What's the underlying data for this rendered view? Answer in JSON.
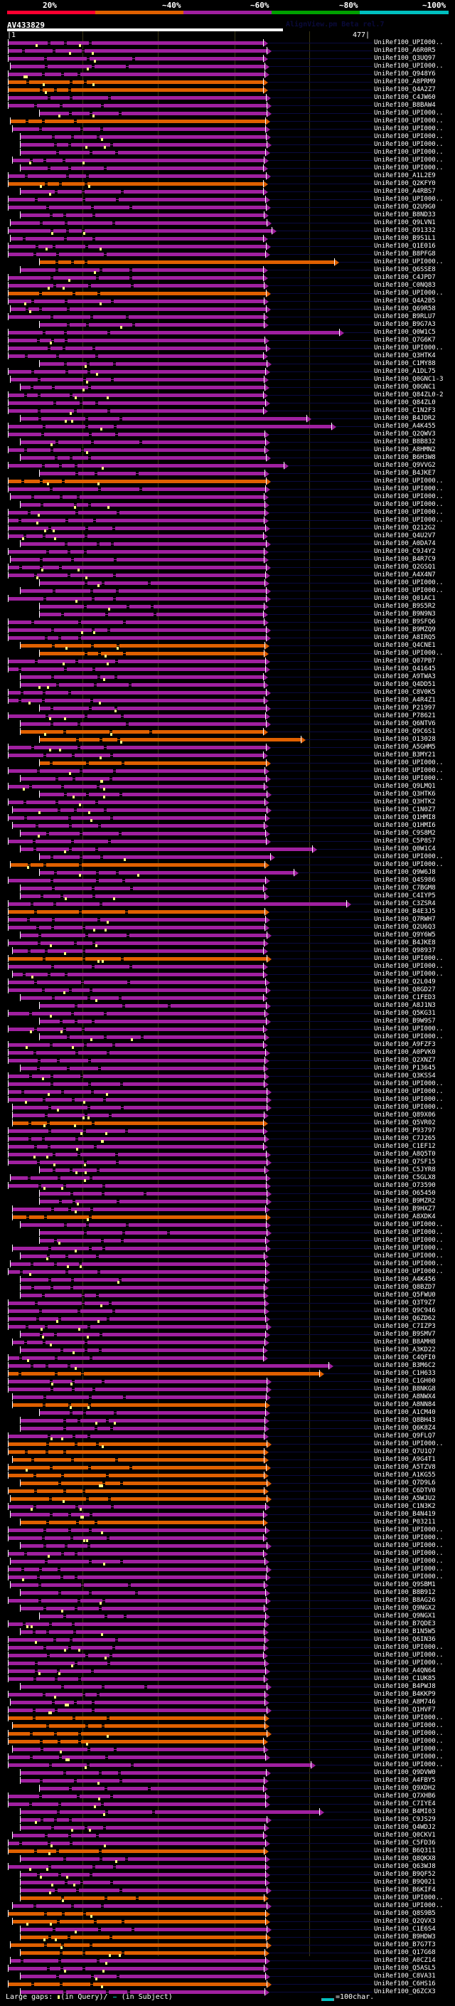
{
  "legend": {
    "labels": [
      "20%",
      "~40%",
      "~60%",
      "~80%",
      "~100%"
    ],
    "colors": [
      "#ff0030",
      "#e06000",
      "#a020a0",
      "#00a000",
      "#00c0c0"
    ]
  },
  "query": {
    "id": "AV433829",
    "start": "|1",
    "end": "477|",
    "length": 477
  },
  "version_label": "AlignView.pm Beta rel.7",
  "hit_colors": {
    "purple": "#a020a0",
    "orange": "#e06000"
  },
  "rows": [
    {
      "label": "UniRef100_UPI000..",
      "color": "purple"
    },
    {
      "label": "UniRef100_A6R0R5",
      "color": "purple"
    },
    {
      "label": "UniRef100_Q3UQ97",
      "color": "purple"
    },
    {
      "label": "UniRef100_UPI000..",
      "color": "purple"
    },
    {
      "label": "UniRef100_Q948Y6",
      "color": "purple"
    },
    {
      "label": "UniRef100_A8PRM9",
      "color": "orange"
    },
    {
      "label": "UniRef100_Q4A2Z7",
      "color": "orange"
    },
    {
      "label": "UniRef100_C4JW60",
      "color": "purple"
    },
    {
      "label": "UniRef100_B8BAW4",
      "color": "purple"
    },
    {
      "label": "UniRef100_UPI000..",
      "color": "purple"
    },
    {
      "label": "UniRef100_UPI000..",
      "color": "orange"
    },
    {
      "label": "UniRef100_UPI000..",
      "color": "purple"
    },
    {
      "label": "UniRef100_UPI000..",
      "color": "purple"
    },
    {
      "label": "UniRef100_UPI000..",
      "color": "purple"
    },
    {
      "label": "UniRef100_UPI000..",
      "color": "purple"
    },
    {
      "label": "UniRef100_UPI000..",
      "color": "purple"
    },
    {
      "label": "UniRef100_UPI000..",
      "color": "purple"
    },
    {
      "label": "UniRef100_A1L2E9",
      "color": "purple"
    },
    {
      "label": "UniRef100_Q2KFY0",
      "color": "orange"
    },
    {
      "label": "UniRef100_A4RBS7",
      "color": "purple"
    },
    {
      "label": "UniRef100_UPI000..",
      "color": "purple"
    },
    {
      "label": "UniRef100_Q2U9G0",
      "color": "purple"
    },
    {
      "label": "UniRef100_B8ND33",
      "color": "purple"
    },
    {
      "label": "UniRef100_Q9LVN1",
      "color": "purple"
    },
    {
      "label": "UniRef100_O91332",
      "color": "purple",
      "arrow": "far"
    },
    {
      "label": "UniRef100_B9S1L1",
      "color": "purple"
    },
    {
      "label": "UniRef100_Q1E016",
      "color": "purple"
    },
    {
      "label": "UniRef100_B8PFG8",
      "color": "purple"
    },
    {
      "label": "UniRef100_UPI000..",
      "color": "orange",
      "arrow": "far"
    },
    {
      "label": "UniRef100_Q6SSE8",
      "color": "purple"
    },
    {
      "label": "UniRef100_C4JPD7",
      "color": "purple"
    },
    {
      "label": "UniRef100_C0NQ83",
      "color": "purple"
    },
    {
      "label": "UniRef100_UPI000..",
      "color": "orange"
    },
    {
      "label": "UniRef100_Q4A2B5",
      "color": "purple"
    },
    {
      "label": "UniRef100_Q69R58",
      "color": "purple"
    },
    {
      "label": "UniRef100_B9RLU7",
      "color": "purple"
    },
    {
      "label": "UniRef100_B9G7A3",
      "color": "purple"
    },
    {
      "label": "UniRef100_Q0W1C5",
      "color": "purple",
      "arrow": "far"
    },
    {
      "label": "UniRef100_Q7G6K7",
      "color": "purple"
    },
    {
      "label": "UniRef100_UPI000..",
      "color": "purple"
    },
    {
      "label": "UniRef100_Q3HTK4",
      "color": "purple"
    },
    {
      "label": "UniRef100_C1MY88",
      "color": "purple"
    },
    {
      "label": "UniRef100_A1DL75",
      "color": "purple"
    },
    {
      "label": "UniRef100_Q0GNC1-3",
      "color": "purple"
    },
    {
      "label": "UniRef100_Q0GNC1",
      "color": "purple"
    },
    {
      "label": "UniRef100_Q84ZL0-2",
      "color": "purple"
    },
    {
      "label": "UniRef100_Q84ZL0",
      "color": "purple"
    },
    {
      "label": "UniRef100_C1N2F3",
      "color": "purple"
    },
    {
      "label": "UniRef100_B4JDR2",
      "color": "purple",
      "arrow": "far"
    },
    {
      "label": "UniRef100_A4K455",
      "color": "purple",
      "arrow": "far"
    },
    {
      "label": "UniRef100_Q2QWV3",
      "color": "purple"
    },
    {
      "label": "UniRef100_B8B832",
      "color": "purple"
    },
    {
      "label": "UniRef100_A8HMN2",
      "color": "purple"
    },
    {
      "label": "UniRef100_B6H3W8",
      "color": "purple"
    },
    {
      "label": "UniRef100_Q9VVG2",
      "color": "purple",
      "arrow": "far"
    },
    {
      "label": "UniRef100_B4JKE7",
      "color": "purple"
    },
    {
      "label": "UniRef100_UPI000..",
      "color": "orange"
    },
    {
      "label": "UniRef100_UPI000..",
      "color": "purple"
    },
    {
      "label": "UniRef100_UPI000..",
      "color": "purple"
    },
    {
      "label": "UniRef100_UPI000..",
      "color": "purple"
    },
    {
      "label": "UniRef100_UPI000..",
      "color": "purple"
    },
    {
      "label": "UniRef100_UPI000..",
      "color": "purple"
    },
    {
      "label": "UniRef100_Q212G2",
      "color": "purple"
    },
    {
      "label": "UniRef100_Q4U2V7",
      "color": "purple"
    },
    {
      "label": "UniRef100_A0DA74",
      "color": "purple"
    },
    {
      "label": "UniRef100_C9J4Y2",
      "color": "purple"
    },
    {
      "label": "UniRef100_B4R7C9",
      "color": "purple"
    },
    {
      "label": "UniRef100_Q2GSQ1",
      "color": "purple"
    },
    {
      "label": "UniRef100_A4X4N7",
      "color": "purple"
    },
    {
      "label": "UniRef100_UPI000..",
      "color": "purple"
    },
    {
      "label": "UniRef100_UPI000..",
      "color": "purple"
    },
    {
      "label": "UniRef100_Q01AC1",
      "color": "purple"
    },
    {
      "label": "UniRef100_B9S5R2",
      "color": "purple"
    },
    {
      "label": "UniRef100_B9N9N3",
      "color": "purple"
    },
    {
      "label": "UniRef100_B9SFQ6",
      "color": "purple"
    },
    {
      "label": "UniRef100_B9MZQ9",
      "color": "purple"
    },
    {
      "label": "UniRef100_A8IRQ5",
      "color": "purple"
    },
    {
      "label": "UniRef100_Q4CNE1",
      "color": "orange"
    },
    {
      "label": "UniRef100_UPI000..",
      "color": "orange"
    },
    {
      "label": "UniRef100_Q07PB7",
      "color": "purple"
    },
    {
      "label": "UniRef100_Q41645",
      "color": "purple"
    },
    {
      "label": "UniRef100_A9TWA3",
      "color": "purple"
    },
    {
      "label": "UniRef100_Q4DD51",
      "color": "purple"
    },
    {
      "label": "UniRef100_C8V0K5",
      "color": "purple"
    },
    {
      "label": "UniRef100_A4R4Z1",
      "color": "purple"
    },
    {
      "label": "UniRef100_P21997",
      "color": "purple"
    },
    {
      "label": "UniRef100_P78621",
      "color": "purple"
    },
    {
      "label": "UniRef100_Q6NTV6",
      "color": "purple"
    },
    {
      "label": "UniRef100_Q9C6S1",
      "color": "orange"
    },
    {
      "label": "UniRef100_O13028",
      "color": "orange",
      "arrow": "far"
    },
    {
      "label": "UniRef100_A5GHM5",
      "color": "purple"
    },
    {
      "label": "UniRef100_B3MY21",
      "color": "purple"
    },
    {
      "label": "UniRef100_UPI000..",
      "color": "orange"
    },
    {
      "label": "UniRef100_UPI000..",
      "color": "purple"
    },
    {
      "label": "UniRef100_UPI000..",
      "color": "purple"
    },
    {
      "label": "UniRef100_Q9LMQ1",
      "color": "purple"
    },
    {
      "label": "UniRef100_Q3HTK6",
      "color": "purple"
    },
    {
      "label": "UniRef100_Q3HTK2",
      "color": "purple"
    },
    {
      "label": "UniRef100_C1N0Z7",
      "color": "purple"
    },
    {
      "label": "UniRef100_Q1HMI8",
      "color": "purple"
    },
    {
      "label": "UniRef100_Q1HMI6",
      "color": "purple"
    },
    {
      "label": "UniRef100_C9S8M2",
      "color": "purple"
    },
    {
      "label": "UniRef100_C5P8S7",
      "color": "purple"
    },
    {
      "label": "UniRef100_Q0W1C4",
      "color": "purple",
      "arrow": "far"
    },
    {
      "label": "UniRef100_UPI000..",
      "color": "purple",
      "arrow": "far"
    },
    {
      "label": "UniRef100_UPI000..",
      "color": "orange"
    },
    {
      "label": "UniRef100_Q9W6J8",
      "color": "purple",
      "arrow": "far"
    },
    {
      "label": "UniRef100_Q4S986",
      "color": "purple"
    },
    {
      "label": "UniRef100_C7BGM8",
      "color": "purple"
    },
    {
      "label": "UniRef100_C4IYP5",
      "color": "purple"
    },
    {
      "label": "UniRef100_C3ZSR4",
      "color": "purple",
      "arrow": "far"
    },
    {
      "label": "UniRef100_B4E3J5",
      "color": "orange"
    },
    {
      "label": "UniRef100_Q7RWH7",
      "color": "purple"
    },
    {
      "label": "UniRef100_Q2U6Q3",
      "color": "purple"
    },
    {
      "label": "UniRef100_Q9Y6W5",
      "color": "purple"
    },
    {
      "label": "UniRef100_B4JKE8",
      "color": "purple"
    },
    {
      "label": "UniRef100_Q98937",
      "color": "purple"
    },
    {
      "label": "UniRef100_UPI000..",
      "color": "orange"
    },
    {
      "label": "UniRef100_UPI000..",
      "color": "purple"
    },
    {
      "label": "UniRef100_UPI000..",
      "color": "purple"
    },
    {
      "label": "UniRef100_Q2L049",
      "color": "purple"
    },
    {
      "label": "UniRef100_Q8GD27",
      "color": "purple"
    },
    {
      "label": "UniRef100_C1FED3",
      "color": "purple"
    },
    {
      "label": "UniRef100_A8J1N3",
      "color": "purple"
    },
    {
      "label": "UniRef100_Q5KG31",
      "color": "purple"
    },
    {
      "label": "UniRef100_B9W9S7",
      "color": "purple"
    },
    {
      "label": "UniRef100_UPI000..",
      "color": "purple"
    },
    {
      "label": "UniRef100_UPI000..",
      "color": "purple"
    },
    {
      "label": "UniRef100_A9FZF3",
      "color": "purple"
    },
    {
      "label": "UniRef100_A0PVK0",
      "color": "purple"
    },
    {
      "label": "UniRef100_Q2XNZ7",
      "color": "purple"
    },
    {
      "label": "UniRef100_P13645",
      "color": "purple"
    },
    {
      "label": "UniRef100_Q3KSS4",
      "color": "purple"
    },
    {
      "label": "UniRef100_UPI000..",
      "color": "purple"
    },
    {
      "label": "UniRef100_UPI000..",
      "color": "purple"
    },
    {
      "label": "UniRef100_UPI000..",
      "color": "purple"
    },
    {
      "label": "UniRef100_UPI000..",
      "color": "purple"
    },
    {
      "label": "UniRef100_Q89X06",
      "color": "purple"
    },
    {
      "label": "UniRef100_Q5VR02",
      "color": "orange"
    },
    {
      "label": "UniRef100_P93797",
      "color": "purple"
    },
    {
      "label": "UniRef100_C7J265",
      "color": "purple"
    },
    {
      "label": "UniRef100_C1EF12",
      "color": "purple"
    },
    {
      "label": "UniRef100_A8Q5T0",
      "color": "purple"
    },
    {
      "label": "UniRef100_Q7SF15",
      "color": "purple"
    },
    {
      "label": "UniRef100_C5JYR8",
      "color": "purple"
    },
    {
      "label": "UniRef100_C5GLX8",
      "color": "purple"
    },
    {
      "label": "UniRef100_O73590",
      "color": "purple"
    },
    {
      "label": "UniRef100_O65450",
      "color": "purple"
    },
    {
      "label": "UniRef100_B9MZR2",
      "color": "purple"
    },
    {
      "label": "UniRef100_B9HXZ7",
      "color": "purple"
    },
    {
      "label": "UniRef100_A8XDK4",
      "color": "orange"
    },
    {
      "label": "UniRef100_UPI000..",
      "color": "purple"
    },
    {
      "label": "UniRef100_UPI000..",
      "color": "purple"
    },
    {
      "label": "UniRef100_UPI000..",
      "color": "purple"
    },
    {
      "label": "UniRef100_UPI000..",
      "color": "purple"
    },
    {
      "label": "UniRef100_UPI000..",
      "color": "purple"
    },
    {
      "label": "UniRef100_UPI000..",
      "color": "purple"
    },
    {
      "label": "UniRef100_UPI000..",
      "color": "purple"
    },
    {
      "label": "UniRef100_A4K456",
      "color": "purple"
    },
    {
      "label": "UniRef100_Q8BZD7",
      "color": "purple"
    },
    {
      "label": "UniRef100_Q5FWU0",
      "color": "purple"
    },
    {
      "label": "UniRef100_Q3T9Z7",
      "color": "purple"
    },
    {
      "label": "UniRef100_Q9C946",
      "color": "purple"
    },
    {
      "label": "UniRef100_Q6ZD62",
      "color": "purple"
    },
    {
      "label": "UniRef100_C7IZP3",
      "color": "purple"
    },
    {
      "label": "UniRef100_B9SMV7",
      "color": "purple"
    },
    {
      "label": "UniRef100_B8AMH8",
      "color": "purple"
    },
    {
      "label": "UniRef100_A3KD22",
      "color": "purple"
    },
    {
      "label": "UniRef100_C4QFI0",
      "color": "purple"
    },
    {
      "label": "UniRef100_B3M6C2",
      "color": "purple",
      "arrow": "far"
    },
    {
      "label": "UniRef100_C1H633",
      "color": "orange",
      "arrow": "far"
    },
    {
      "label": "UniRef100_C1GH00",
      "color": "purple"
    },
    {
      "label": "UniRef100_B8NKG8",
      "color": "purple"
    },
    {
      "label": "UniRef100_A8NWX4",
      "color": "purple"
    },
    {
      "label": "UniRef100_A8NN84",
      "color": "orange"
    },
    {
      "label": "UniRef100_A1CM40",
      "color": "purple"
    },
    {
      "label": "UniRef100_Q8BH43",
      "color": "purple"
    },
    {
      "label": "UniRef100_Q6K8Z4",
      "color": "purple"
    },
    {
      "label": "UniRef100_Q9FLQ7",
      "color": "purple"
    },
    {
      "label": "UniRef100_UPI000..",
      "color": "orange"
    },
    {
      "label": "UniRef100_Q7U1Q7",
      "color": "orange"
    },
    {
      "label": "UniRef100_A9G4T1",
      "color": "orange"
    },
    {
      "label": "UniRef100_A5TZV8",
      "color": "orange"
    },
    {
      "label": "UniRef100_A1KG55",
      "color": "orange"
    },
    {
      "label": "UniRef100_Q7D9L6",
      "color": "orange"
    },
    {
      "label": "UniRef100_C6DTV0",
      "color": "orange"
    },
    {
      "label": "UniRef100_A5WJU2",
      "color": "orange"
    },
    {
      "label": "UniRef100_C1N3K2",
      "color": "purple"
    },
    {
      "label": "UniRef100_B4N419",
      "color": "purple"
    },
    {
      "label": "UniRef100_P03211",
      "color": "orange"
    },
    {
      "label": "UniRef100_UPI000..",
      "color": "purple"
    },
    {
      "label": "UniRef100_UPI000..",
      "color": "purple"
    },
    {
      "label": "UniRef100_UPI000..",
      "color": "purple"
    },
    {
      "label": "UniRef100_UPI000..",
      "color": "purple"
    },
    {
      "label": "UniRef100_UPI000..",
      "color": "purple"
    },
    {
      "label": "UniRef100_UPI000..",
      "color": "purple"
    },
    {
      "label": "UniRef100_UPI000..",
      "color": "purple"
    },
    {
      "label": "UniRef100_Q9SBM1",
      "color": "purple"
    },
    {
      "label": "UniRef100_B8B912",
      "color": "purple"
    },
    {
      "label": "UniRef100_B8AG26",
      "color": "purple"
    },
    {
      "label": "UniRef100_Q9NGX2",
      "color": "purple"
    },
    {
      "label": "UniRef100_Q9NGX1",
      "color": "purple"
    },
    {
      "label": "UniRef100_B7QDE3",
      "color": "purple"
    },
    {
      "label": "UniRef100_B1N5W5",
      "color": "purple"
    },
    {
      "label": "UniRef100_Q6IN36",
      "color": "purple"
    },
    {
      "label": "UniRef100_UPI000..",
      "color": "purple"
    },
    {
      "label": "UniRef100_UPI000..",
      "color": "purple"
    },
    {
      "label": "UniRef100_UPI000..",
      "color": "purple"
    },
    {
      "label": "UniRef100_A4QN64",
      "color": "purple"
    },
    {
      "label": "UniRef100_C1UK85",
      "color": "purple"
    },
    {
      "label": "UniRef100_B4PWJ8",
      "color": "purple"
    },
    {
      "label": "UniRef100_B4KKP9",
      "color": "purple"
    },
    {
      "label": "UniRef100_A8M746",
      "color": "purple"
    },
    {
      "label": "UniRef100_Q1HVF7",
      "color": "purple"
    },
    {
      "label": "UniRef100_UPI000..",
      "color": "orange"
    },
    {
      "label": "UniRef100_UPI000..",
      "color": "orange"
    },
    {
      "label": "UniRef100_UPI000..",
      "color": "orange"
    },
    {
      "label": "UniRef100_UPI000..",
      "color": "orange"
    },
    {
      "label": "UniRef100_UPI000..",
      "color": "purple"
    },
    {
      "label": "UniRef100_UPI000..",
      "color": "purple"
    },
    {
      "label": "UniRef100_UPI000..",
      "color": "purple",
      "arrow": "far"
    },
    {
      "label": "UniRef100_Q9DVW0",
      "color": "purple"
    },
    {
      "label": "UniRef100_A4FBY5",
      "color": "purple"
    },
    {
      "label": "UniRef100_Q9XDH2",
      "color": "purple"
    },
    {
      "label": "UniRef100_Q7XHB6",
      "color": "purple"
    },
    {
      "label": "UniRef100_C7IYE4",
      "color": "purple"
    },
    {
      "label": "UniRef100_B4MI03",
      "color": "purple",
      "arrow": "far"
    },
    {
      "label": "UniRef100_C9JS29",
      "color": "purple"
    },
    {
      "label": "UniRef100_Q4WDJ2",
      "color": "purple"
    },
    {
      "label": "UniRef100_Q0CKV1",
      "color": "purple"
    },
    {
      "label": "UniRef100_C5FD36",
      "color": "purple"
    },
    {
      "label": "UniRef100_B6Q311",
      "color": "orange"
    },
    {
      "label": "UniRef100_Q8QKX8",
      "color": "purple"
    },
    {
      "label": "UniRef100_Q63WJ8",
      "color": "purple"
    },
    {
      "label": "UniRef100_B9QF52",
      "color": "purple"
    },
    {
      "label": "UniRef100_B9Q021",
      "color": "purple"
    },
    {
      "label": "UniRef100_B6KIF4",
      "color": "purple"
    },
    {
      "label": "UniRef100_UPI000..",
      "color": "orange"
    },
    {
      "label": "UniRef100_UPI000..",
      "color": "purple"
    },
    {
      "label": "UniRef100_Q8S9B5",
      "color": "orange"
    },
    {
      "label": "UniRef100_Q2QVX3",
      "color": "orange"
    },
    {
      "label": "UniRef100_C1E6S4",
      "color": "purple"
    },
    {
      "label": "UniRef100_B9HDW3",
      "color": "orange"
    },
    {
      "label": "UniRef100_B7G7T3",
      "color": "orange"
    },
    {
      "label": "UniRef100_Q17G68",
      "color": "orange"
    },
    {
      "label": "UniRef100_A0CZ14",
      "color": "purple"
    },
    {
      "label": "UniRef100_Q5ASL5",
      "color": "purple"
    },
    {
      "label": "UniRef100_C8VA31",
      "color": "purple"
    },
    {
      "label": "UniRef100_C6HS16",
      "color": "orange"
    },
    {
      "label": "UniRef100_Q6ZCX3",
      "color": "purple"
    }
  ],
  "footer": {
    "gaps_prefix": "Large gaps:",
    "gaps_query": "(in Query)/",
    "gaps_subject": "(in Subject)",
    "scale_label": "=100char."
  }
}
